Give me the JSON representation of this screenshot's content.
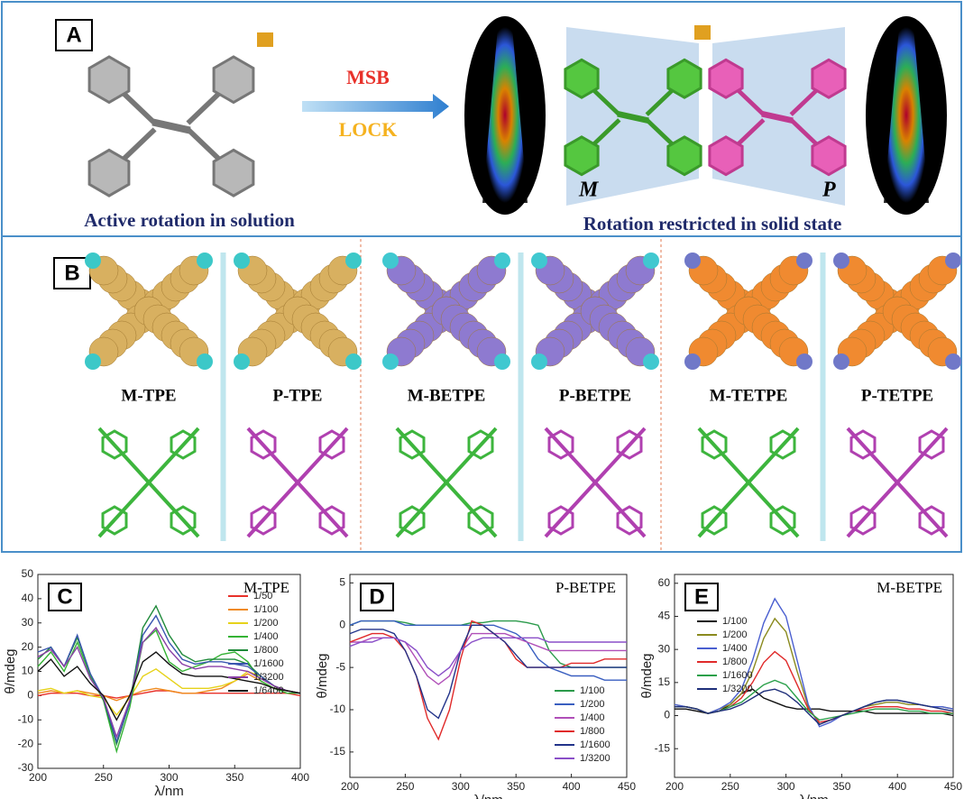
{
  "figure": {
    "panel_a": {
      "label": "A",
      "arrow_top": "MSB",
      "arrow_bottom": "LOCK",
      "left_caption": "Active rotation in solution",
      "right_caption": "Rotation restricted in solid state",
      "left_hand": "M",
      "right_hand": "P"
    },
    "panel_b": {
      "label": "B",
      "molecules": [
        "M-TPE",
        "P-TPE",
        "M-BETPE",
        "P-BETPE",
        "M-TETPE",
        "P-TETPE"
      ]
    }
  },
  "chart_data": [
    {
      "type": "line",
      "label": "C",
      "title": "M-TPE",
      "x_label": "λ/nm",
      "y_label": "θ/mdeg",
      "legend": "upper right",
      "x": [
        200,
        210,
        220,
        230,
        240,
        250,
        260,
        270,
        280,
        290,
        300,
        310,
        320,
        330,
        340,
        350,
        360,
        370,
        380,
        390,
        400
      ],
      "xlim": [
        200,
        400
      ],
      "xticks": [
        200,
        250,
        300,
        350,
        400
      ],
      "ylim": [
        -30,
        50
      ],
      "yticks": [
        -30,
        -20,
        -10,
        0,
        10,
        20,
        30,
        40,
        50
      ],
      "series": [
        {
          "name": "1/50",
          "color": "#e8312a",
          "values": [
            0,
            1,
            1,
            1,
            0,
            0,
            -1,
            0,
            1,
            2,
            2,
            1,
            1,
            1,
            1,
            1,
            1,
            1,
            1,
            1,
            0
          ]
        },
        {
          "name": "1/100",
          "color": "#f08a1e",
          "values": [
            1,
            2,
            1,
            2,
            1,
            0,
            -2,
            0,
            2,
            3,
            2,
            1,
            1,
            2,
            3,
            6,
            9,
            6,
            3,
            2,
            1
          ]
        },
        {
          "name": "1/200",
          "color": "#e6d21a",
          "values": [
            2,
            3,
            1,
            2,
            0,
            -1,
            -8,
            -1,
            8,
            11,
            7,
            3,
            3,
            3,
            4,
            6,
            10,
            8,
            4,
            2,
            1
          ]
        },
        {
          "name": "1/400",
          "color": "#35b335",
          "values": [
            12,
            18,
            10,
            22,
            8,
            -2,
            -23,
            -5,
            22,
            27,
            14,
            10,
            12,
            14,
            17,
            18,
            14,
            6,
            3,
            1,
            1
          ]
        },
        {
          "name": "1/800",
          "color": "#1f8a3a",
          "values": [
            15,
            20,
            12,
            24,
            9,
            -2,
            -20,
            -3,
            28,
            37,
            25,
            17,
            14,
            15,
            15,
            15,
            13,
            8,
            4,
            2,
            1
          ]
        },
        {
          "name": "1/1600",
          "color": "#3a56b0",
          "values": [
            18,
            20,
            12,
            25,
            9,
            -1,
            -19,
            -3,
            25,
            33,
            22,
            15,
            13,
            14,
            14,
            13,
            12,
            8,
            4,
            2,
            1
          ]
        },
        {
          "name": "1/3200",
          "color": "#8a3fa6",
          "values": [
            16,
            19,
            12,
            20,
            7,
            -1,
            -17,
            -2,
            22,
            28,
            19,
            13,
            11,
            12,
            12,
            11,
            10,
            7,
            4,
            2,
            1
          ]
        },
        {
          "name": "1/6400",
          "color": "#111111",
          "values": [
            10,
            15,
            8,
            12,
            5,
            0,
            -10,
            0,
            14,
            18,
            13,
            9,
            8,
            8,
            8,
            7,
            6,
            5,
            3,
            2,
            1
          ]
        }
      ]
    },
    {
      "type": "line",
      "label": "D",
      "title": "P-BETPE",
      "x_label": "λ/nm",
      "y_label": "θ/mdeg",
      "legend": "lower right",
      "x": [
        200,
        210,
        220,
        230,
        240,
        250,
        260,
        270,
        280,
        290,
        300,
        310,
        320,
        330,
        340,
        350,
        360,
        370,
        380,
        390,
        400,
        410,
        420,
        430,
        440,
        450
      ],
      "xlim": [
        200,
        450
      ],
      "xticks": [
        200,
        250,
        300,
        350,
        400,
        450
      ],
      "ylim": [
        -18,
        6
      ],
      "yticks": [
        -15,
        -10,
        -5,
        0,
        5
      ],
      "series": [
        {
          "name": "1/100",
          "color": "#2a9a4a",
          "values": [
            0,
            0.5,
            0.5,
            0.5,
            0.5,
            0.3,
            0,
            0,
            0,
            0,
            0,
            0.3,
            0.3,
            0.5,
            0.5,
            0.5,
            0.3,
            0,
            -3,
            -4.5,
            -5,
            -5,
            -5,
            -5,
            -5,
            -5
          ]
        },
        {
          "name": "1/200",
          "color": "#3a5fc0",
          "values": [
            0,
            0.5,
            0.5,
            0.5,
            0.5,
            0,
            0,
            0,
            0,
            0,
            0,
            0,
            0,
            0,
            -0.5,
            -1,
            -2,
            -4,
            -5,
            -5.5,
            -6,
            -6,
            -6,
            -6.5,
            -6.5,
            -6.5
          ]
        },
        {
          "name": "1/400",
          "color": "#b04fb8",
          "values": [
            -2,
            -2,
            -1.5,
            -1.5,
            -1.5,
            -2,
            -4,
            -6,
            -7,
            -6,
            -3,
            -1,
            -1,
            -1,
            -1,
            -1.5,
            -2,
            -2.5,
            -3,
            -3,
            -3,
            -3,
            -3,
            -3,
            -3,
            -3
          ]
        },
        {
          "name": "1/800",
          "color": "#e02a2a",
          "values": [
            -2,
            -1.5,
            -1,
            -1,
            -1.5,
            -3,
            -6,
            -11,
            -13.5,
            -10,
            -4,
            0.5,
            0,
            -1,
            -2,
            -4,
            -5,
            -5,
            -5,
            -5,
            -4.5,
            -4.5,
            -4.5,
            -4,
            -4,
            -4
          ]
        },
        {
          "name": "1/1600",
          "color": "#22338a",
          "values": [
            -1,
            -0.5,
            -0.5,
            -0.5,
            -1,
            -3,
            -6,
            -10,
            -11,
            -8,
            -3,
            0,
            0,
            -1,
            -2,
            -3.5,
            -5,
            -5,
            -5,
            -5,
            -5,
            -5,
            -5,
            -5,
            -5,
            -5
          ]
        },
        {
          "name": "1/3200",
          "color": "#8a4fc8",
          "values": [
            -2.5,
            -2,
            -2,
            -1.5,
            -1.5,
            -2,
            -3,
            -5,
            -6,
            -5,
            -3,
            -2,
            -1.5,
            -1.5,
            -1.5,
            -1.5,
            -1.5,
            -1.5,
            -2,
            -2,
            -2,
            -2,
            -2,
            -2,
            -2,
            -2
          ]
        }
      ]
    },
    {
      "type": "line",
      "label": "E",
      "title": "M-BETPE",
      "x_label": "λ/nm",
      "y_label": "θ/mdeg",
      "legend": "upper left",
      "x": [
        200,
        210,
        220,
        230,
        240,
        250,
        260,
        270,
        280,
        290,
        300,
        310,
        320,
        330,
        340,
        350,
        360,
        370,
        380,
        390,
        400,
        410,
        420,
        430,
        440,
        450
      ],
      "xlim": [
        200,
        450
      ],
      "xticks": [
        200,
        250,
        300,
        350,
        400,
        450
      ],
      "ylim": [
        -28,
        64
      ],
      "yticks": [
        -15,
        0,
        15,
        30,
        45,
        60
      ],
      "series": [
        {
          "name": "1/100",
          "color": "#111111",
          "values": [
            3,
            3,
            2,
            1,
            2,
            5,
            10,
            12,
            8,
            6,
            4,
            3,
            3,
            3,
            2,
            2,
            2,
            2,
            1,
            1,
            1,
            1,
            1,
            1,
            1,
            0
          ]
        },
        {
          "name": "1/200",
          "color": "#8a8a1e",
          "values": [
            5,
            4,
            3,
            1,
            3,
            5,
            10,
            20,
            35,
            44,
            38,
            20,
            4,
            -4,
            -2,
            0,
            2,
            4,
            5,
            6,
            6,
            5,
            5,
            4,
            4,
            3
          ]
        },
        {
          "name": "1/400",
          "color": "#4a5fd0",
          "values": [
            5,
            4,
            3,
            1,
            3,
            6,
            12,
            25,
            42,
            53,
            45,
            25,
            5,
            -5,
            -3,
            0,
            2,
            4,
            6,
            7,
            7,
            6,
            5,
            4,
            4,
            3
          ]
        },
        {
          "name": "1/800",
          "color": "#e02a2a",
          "values": [
            4,
            4,
            3,
            1,
            2,
            4,
            8,
            15,
            24,
            29,
            25,
            14,
            3,
            -3,
            -2,
            0,
            2,
            3,
            4,
            4,
            4,
            3,
            3,
            2,
            2,
            1
          ]
        },
        {
          "name": "1/1600",
          "color": "#2aa04a",
          "values": [
            4,
            4,
            3,
            1,
            2,
            4,
            6,
            10,
            14,
            16,
            14,
            8,
            2,
            -2,
            -1,
            0,
            1,
            2,
            3,
            3,
            3,
            2,
            2,
            1,
            1,
            1
          ]
        },
        {
          "name": "1/3200",
          "color": "#1f2f7a",
          "values": [
            4,
            4,
            3,
            1,
            2,
            3,
            5,
            8,
            11,
            12,
            10,
            6,
            1,
            -4,
            -2,
            0,
            2,
            4,
            6,
            7,
            7,
            6,
            5,
            4,
            3,
            2
          ]
        }
      ]
    }
  ]
}
